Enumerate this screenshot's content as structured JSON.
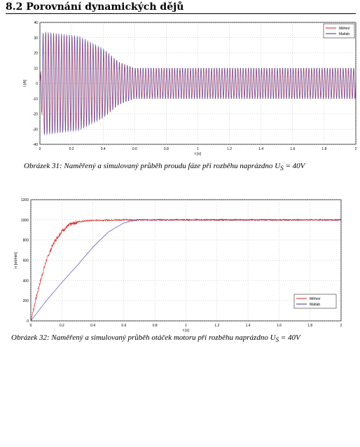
{
  "heading": "8.2 Porovnání dynamických dějů",
  "figure1": {
    "caption_text": "Obrázek 31: Naměřený a simulovaný průběh proudu fáze při rozběhu naprázdno",
    "caption_math": "U",
    "caption_sub": "S",
    "caption_eq": " = 40V",
    "chart_data": {
      "type": "line",
      "xlabel": "t [s]",
      "ylabel": "I [A]",
      "xlim": [
        0,
        2
      ],
      "ylim": [
        -40,
        40
      ],
      "x_ticks": [
        "0",
        "0.2",
        "0.4",
        "0.6",
        "0.8",
        "1",
        "1.2",
        "1.4",
        "1.6",
        "1.8",
        "2"
      ],
      "y_ticks": [
        "40",
        "30",
        "20",
        "10",
        "0",
        "-10",
        "-20",
        "-30",
        "-40"
      ],
      "legend_position": "top-right",
      "series": [
        {
          "name": "Měření",
          "color": "#d42020",
          "envelope": {
            "t": [
              0,
              0.02,
              0.25,
              0.4,
              0.5,
              0.6,
              2
            ],
            "amp": [
              0,
              33,
              30,
              22,
              14,
              10,
              10
            ]
          },
          "oscillation_hz": 60
        },
        {
          "name": "Matlab",
          "color": "#2a2aa0",
          "envelope": {
            "t": [
              0,
              0.02,
              0.25,
              0.4,
              0.5,
              0.6,
              2
            ],
            "amp": [
              0,
              34,
              31,
              23,
              14,
              10,
              10
            ]
          },
          "oscillation_hz": 60
        }
      ]
    }
  },
  "figure2": {
    "caption_text": "Obrázek 32: Naměřený a simulovaný průběh otáček motoru při rozběhu naprázdno",
    "caption_math": "U",
    "caption_sub": "S",
    "caption_eq": " = 40V",
    "chart_data": {
      "type": "line",
      "xlabel": "t [s]",
      "ylabel": "n [ot/min]",
      "xlim": [
        0,
        2
      ],
      "ylim": [
        0,
        1200
      ],
      "x_ticks": [
        "0",
        "0.2",
        "0.4",
        "0.6",
        "0.8",
        "1",
        "1.2",
        "1.4",
        "1.6",
        "1.8",
        "2"
      ],
      "y_ticks": [
        "1200",
        "1000",
        "800",
        "600",
        "400",
        "200",
        "0"
      ],
      "legend_position": "bottom-right",
      "series": [
        {
          "name": "Měření",
          "color": "#d42020",
          "x": [
            0,
            0.05,
            0.1,
            0.15,
            0.2,
            0.25,
            0.3,
            0.35,
            0.4,
            0.5,
            0.6,
            2
          ],
          "y": [
            0,
            330,
            600,
            780,
            890,
            950,
            980,
            990,
            995,
            998,
            1000,
            1000
          ]
        },
        {
          "name": "Matlab",
          "color": "#3030b0",
          "x": [
            0,
            0.1,
            0.2,
            0.3,
            0.4,
            0.5,
            0.6,
            0.65,
            0.7,
            0.8,
            2
          ],
          "y": [
            0,
            200,
            380,
            550,
            730,
            880,
            970,
            990,
            1000,
            1000,
            1000
          ]
        }
      ]
    }
  }
}
